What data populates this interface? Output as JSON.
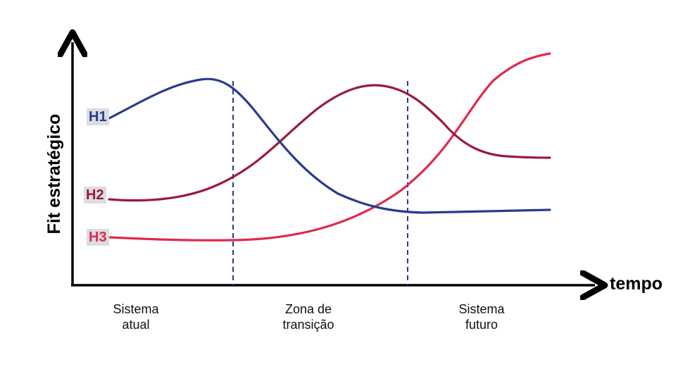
{
  "axes": {
    "y_label": "Fit estratégico",
    "x_label": "tempo"
  },
  "series_labels": {
    "h1": "H1",
    "h2": "H2",
    "h3": "H3"
  },
  "zones": {
    "current": "Sistema\natual",
    "transition": "Zona de\ntransição",
    "future": "Sistema\nfuturo"
  },
  "colors": {
    "h1": "#2b3a8c",
    "h2": "#9b1b3a",
    "h3": "#e0294e",
    "axis": "#000000",
    "divider": "#2b3a8c",
    "label_bg": "#dcdde3"
  }
}
